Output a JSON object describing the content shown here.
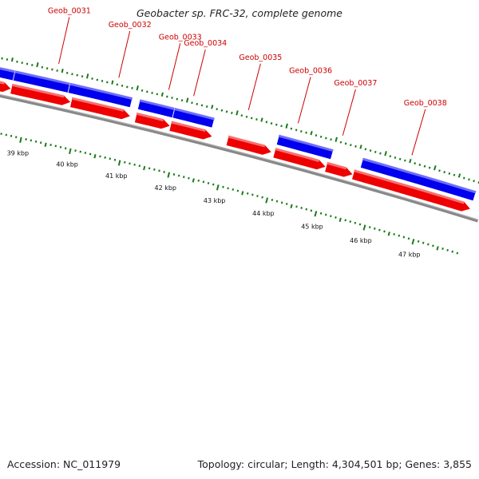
{
  "title": "Geobacter sp. FRC-32, complete genome",
  "footer": {
    "accession": "Accession: NC_011979",
    "summary": "Topology: circular; Length: 4,304,501 bp; Genes: 3,855"
  },
  "colors": {
    "forward_gene": "#0000ee",
    "reverse_gene": "#ee0000",
    "label": "#cc0000",
    "tick": "#1a7a1a",
    "backbone": "#777777"
  },
  "scale": {
    "start_kbp": 38.3,
    "end_kbp": 47.9
  },
  "gene_labels": [
    {
      "name": "Geob_0031",
      "kbp": 39.4
    },
    {
      "name": "Geob_0032",
      "kbp": 40.6
    },
    {
      "name": "Geob_0033",
      "kbp": 41.6
    },
    {
      "name": "Geob_0034",
      "kbp": 42.1
    },
    {
      "name": "Geob_0035",
      "kbp": 43.2
    },
    {
      "name": "Geob_0036",
      "kbp": 44.2
    },
    {
      "name": "Geob_0037",
      "kbp": 45.1
    },
    {
      "name": "Geob_0038",
      "kbp": 46.5
    }
  ],
  "forward_genes": [
    {
      "start": 38.3,
      "end": 38.6
    },
    {
      "start": 38.6,
      "end": 39.7
    },
    {
      "start": 39.7,
      "end": 40.95
    },
    {
      "start": 41.1,
      "end": 41.8
    },
    {
      "start": 41.8,
      "end": 42.6
    },
    {
      "start": 43.9,
      "end": 45.0
    },
    {
      "start": 45.6,
      "end": 47.9
    }
  ],
  "reverse_genes": [
    {
      "start": 38.3,
      "end": 38.6
    },
    {
      "start": 38.6,
      "end": 39.8
    },
    {
      "start": 39.8,
      "end": 41.0
    },
    {
      "start": 41.1,
      "end": 41.8
    },
    {
      "start": 41.8,
      "end": 42.65
    },
    {
      "start": 42.95,
      "end": 43.85
    },
    {
      "start": 43.9,
      "end": 44.95
    },
    {
      "start": 44.95,
      "end": 45.5
    },
    {
      "start": 45.5,
      "end": 47.9
    }
  ],
  "scale_labels": [
    "39 kbp",
    "40 kbp",
    "41 kbp",
    "42 kbp",
    "43 kbp",
    "44 kbp",
    "45 kbp",
    "46 kbp",
    "47 kbp"
  ]
}
